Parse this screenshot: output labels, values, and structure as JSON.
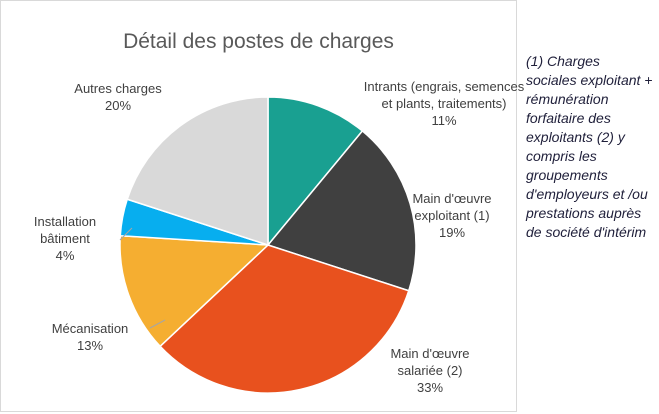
{
  "chart_data": {
    "type": "pie",
    "title": "Détail des postes de charges",
    "categories": [
      "Intrants (engrais, semences et plants, traitements)",
      "Main d'œuvre exploitant (1)",
      "Main d'œuvre salariée (2)",
      "Mécanisation",
      "Installation bâtiment",
      "Autres charges"
    ],
    "values": [
      11,
      19,
      33,
      13,
      4,
      20
    ],
    "value_labels": [
      "11%",
      "19%",
      "33%",
      "13%",
      "4%",
      "20%"
    ],
    "colors": [
      "#19a091",
      "#404040",
      "#e8511e",
      "#f5ae31",
      "#07aeef",
      "#d9d9d9"
    ]
  },
  "note": "(1) Charges sociales exploitant + rémunération forfaitaire des exploitants (2) y compris les groupements d'employeurs et /ou prestations auprès de société d'intérim"
}
